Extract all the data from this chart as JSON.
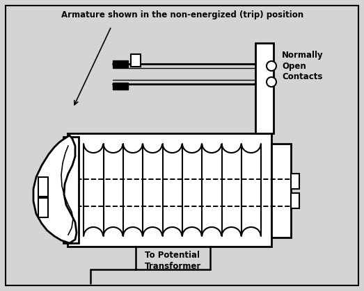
{
  "bg_color": "#d4d4d4",
  "line_color": "#000000",
  "title_text": "Armature shown in the non-energized (trip) position",
  "label_normally_open": "Normally\nOpen\nContacts",
  "label_transformer": "To Potential\nTransformer",
  "figsize": [
    5.23,
    4.19
  ],
  "dpi": 100
}
